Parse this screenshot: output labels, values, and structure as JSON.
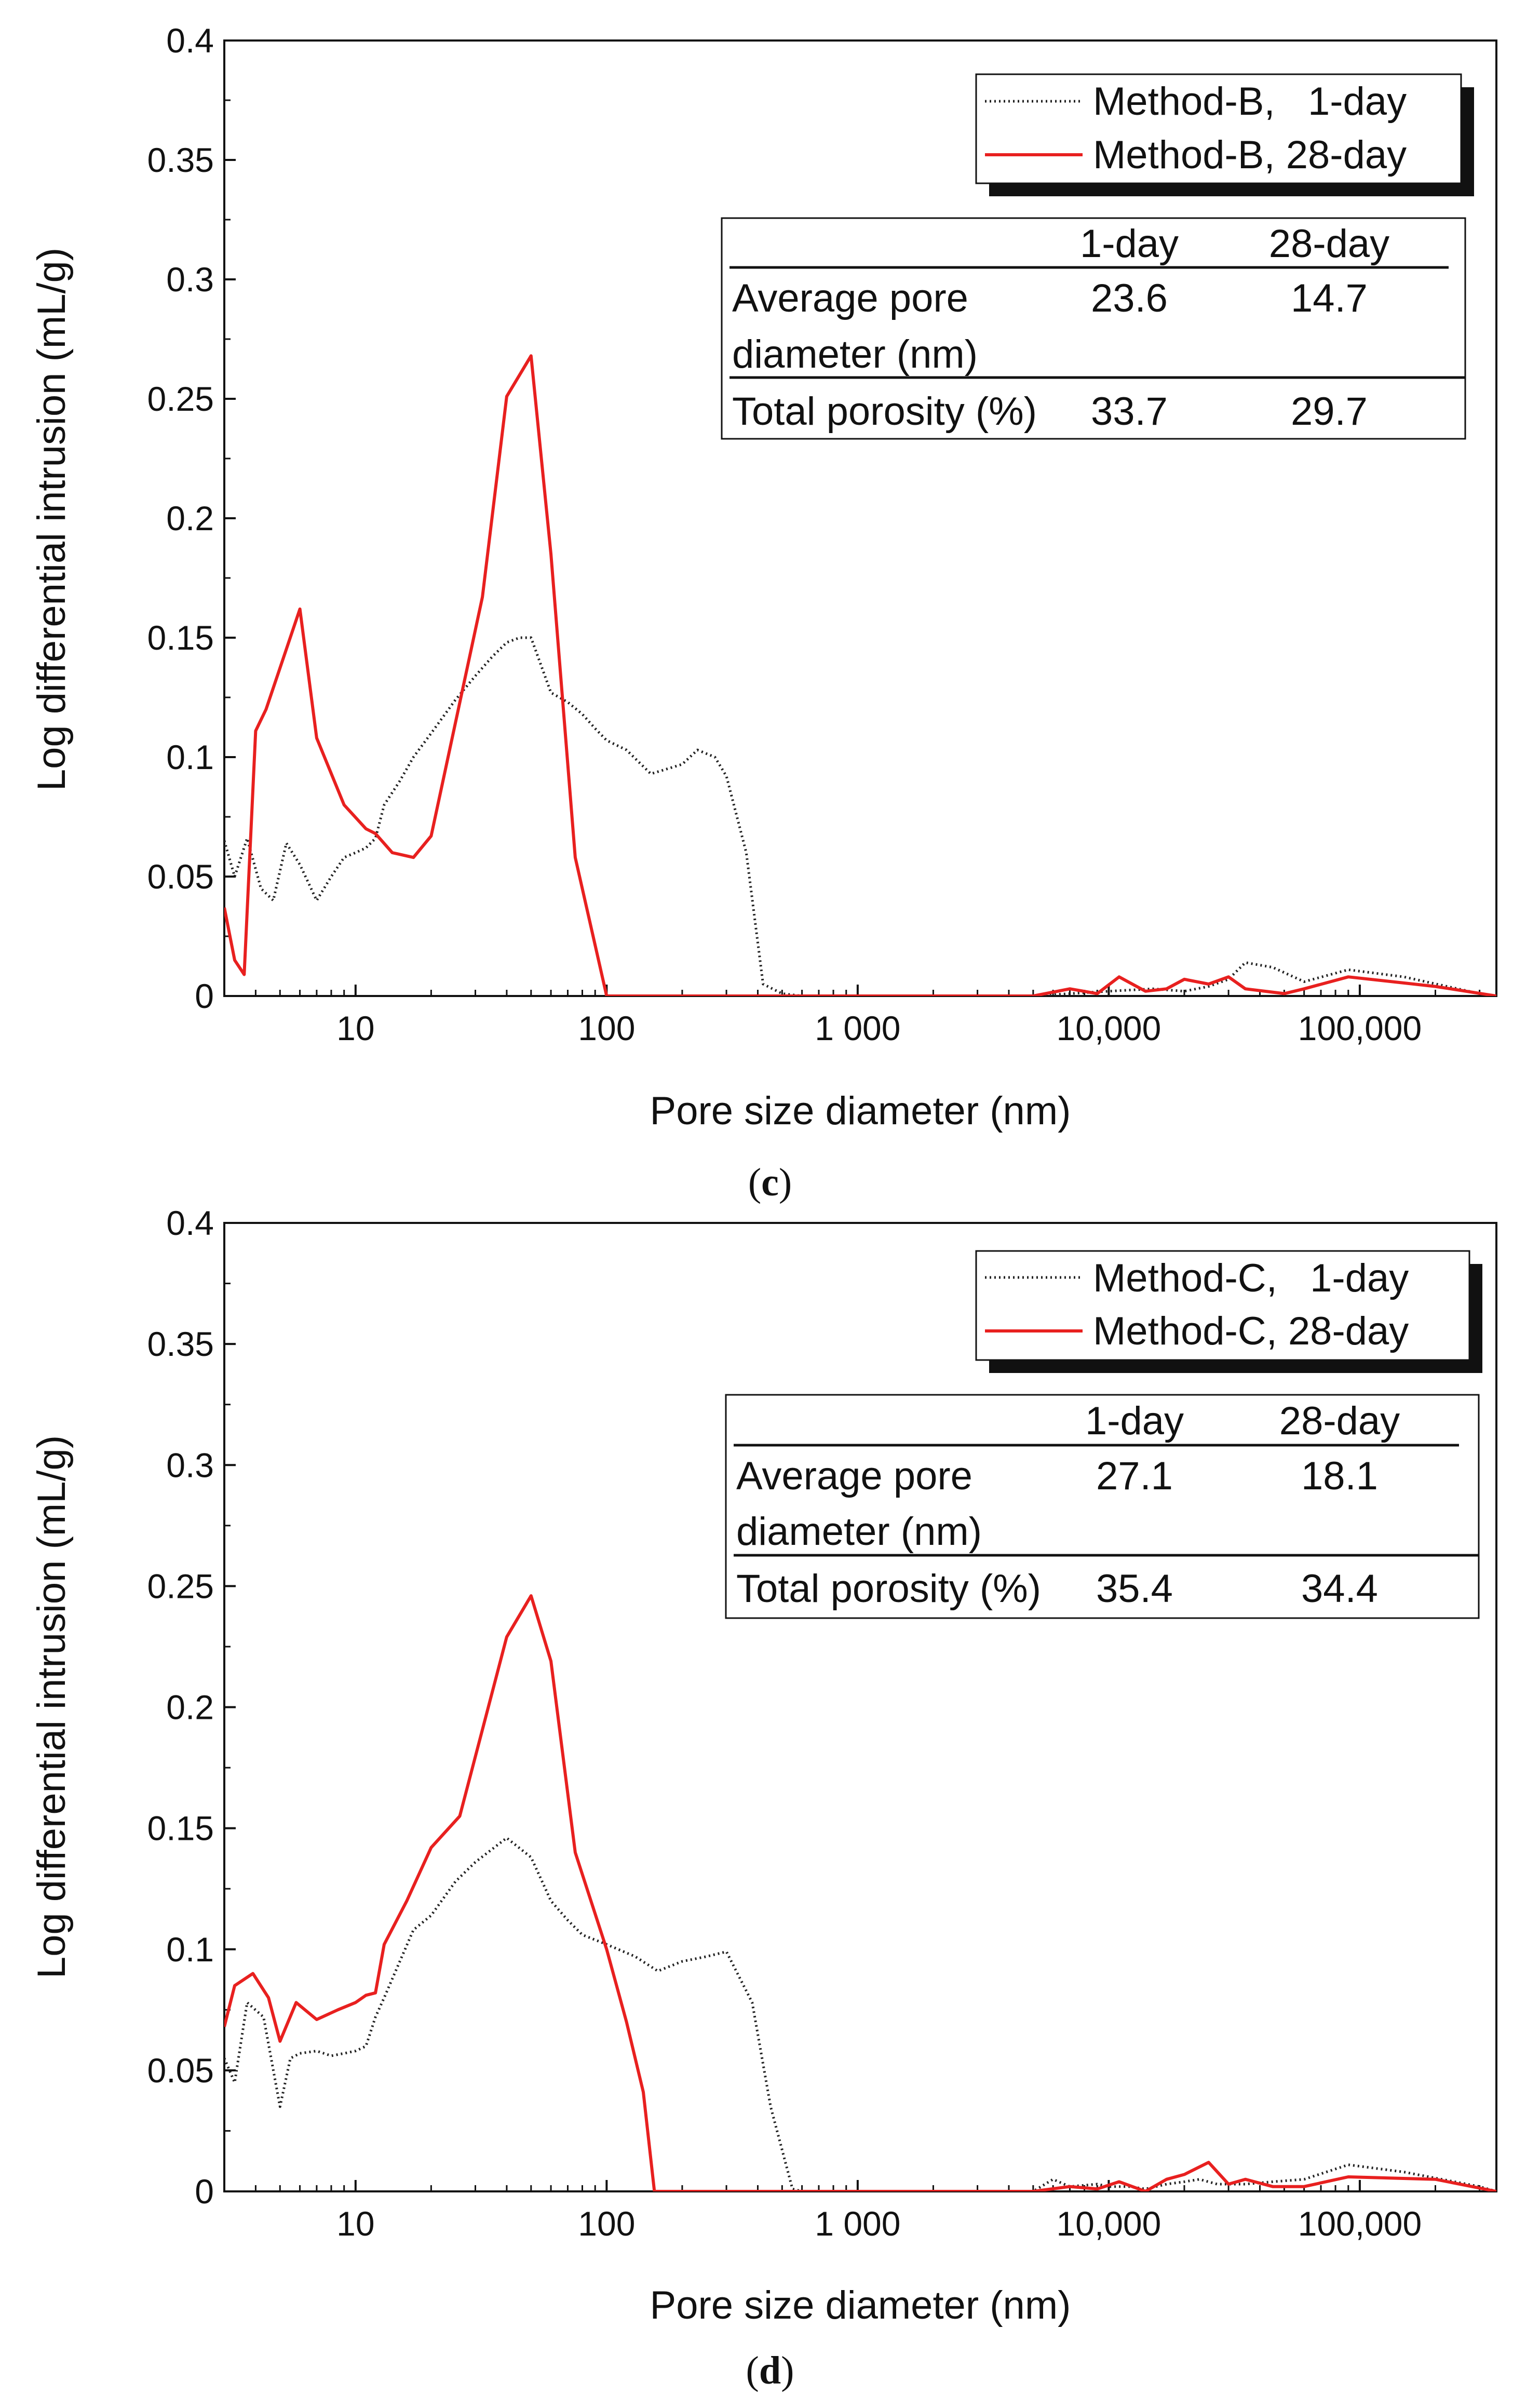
{
  "chart_data": [
    {
      "type": "line",
      "panel_label": "c",
      "xscale": "log",
      "xlim": [
        3,
        350000
      ],
      "ylim": [
        0,
        0.4
      ],
      "xlabel": "Pore size diameter (nm)",
      "ylabel": "Log differential intrusion (mL/g)",
      "yticks": [
        "0",
        "0.05",
        "0.1",
        "0.15",
        "0.2",
        "0.25",
        "0.3",
        "0.35",
        "0.4"
      ],
      "xticks": [
        "10",
        "100",
        "1 000",
        "10,000",
        "100,000"
      ],
      "legend": [
        "Method-B,   1-day",
        "Method-B, 28-day"
      ],
      "series": [
        {
          "name": "Method-B,   1-day",
          "color": "#222222",
          "style": "dotted",
          "x": [
            3,
            3.3,
            3.7,
            4.2,
            4.7,
            5.3,
            6,
            7,
            8,
            9,
            10,
            11,
            12,
            13,
            15,
            17,
            20,
            25,
            30,
            35,
            40,
            45,
            50,
            60,
            70,
            80,
            90,
            100,
            120,
            150,
            200,
            230,
            270,
            300,
            360,
            420,
            500,
            600,
            1000,
            5000,
            7000,
            10000,
            15000,
            20000,
            25000,
            30000,
            35000,
            45000,
            60000,
            90000,
            150000,
            300000,
            350000
          ],
          "y": [
            0.065,
            0.05,
            0.066,
            0.045,
            0.04,
            0.064,
            0.055,
            0.04,
            0.05,
            0.058,
            0.06,
            0.062,
            0.066,
            0.08,
            0.09,
            0.1,
            0.11,
            0.124,
            0.134,
            0.142,
            0.148,
            0.15,
            0.15,
            0.127,
            0.123,
            0.118,
            0.112,
            0.107,
            0.103,
            0.093,
            0.097,
            0.103,
            0.1,
            0.092,
            0.06,
            0.005,
            0.001,
            0,
            0,
            0,
            0.001,
            0.002,
            0.003,
            0.002,
            0.004,
            0.007,
            0.014,
            0.012,
            0.006,
            0.011,
            0.008,
            0.001,
            0
          ]
        },
        {
          "name": "Method-B, 28-day",
          "color": "#e8201f",
          "style": "solid",
          "x": [
            3,
            3.3,
            3.6,
            4,
            4.4,
            6,
            7,
            9,
            11,
            12,
            14,
            17,
            20,
            32,
            40,
            50,
            60,
            75,
            100,
            5000,
            7000,
            9000,
            11000,
            14000,
            17000,
            20000,
            25000,
            30000,
            35000,
            50000,
            60000,
            90000,
            200000,
            350000
          ],
          "y": [
            0.037,
            0.015,
            0.009,
            0.111,
            0.12,
            0.162,
            0.108,
            0.08,
            0.07,
            0.068,
            0.06,
            0.058,
            0.067,
            0.167,
            0.251,
            0.268,
            0.185,
            0.058,
            0,
            0,
            0.003,
            0.001,
            0.008,
            0.002,
            0.003,
            0.007,
            0.005,
            0.008,
            0.003,
            0.001,
            0.003,
            0.008,
            0.004,
            0
          ]
        }
      ],
      "table": {
        "headers": [
          "",
          "1-day",
          "28-day"
        ],
        "row1_label_line1": "Average pore",
        "row1_label_line2": "diameter (nm)",
        "row1_values": [
          "23.6",
          "14.7"
        ],
        "row2_label": "Total porosity (%)",
        "row2_values": [
          "33.7",
          "29.7"
        ]
      }
    },
    {
      "type": "line",
      "panel_label": "d",
      "xscale": "log",
      "xlim": [
        3,
        350000
      ],
      "ylim": [
        0,
        0.4
      ],
      "xlabel": "Pore size diameter (nm)",
      "ylabel": "Log differential intrusion (mL/g)",
      "yticks": [
        "0",
        "0.05",
        "0.1",
        "0.15",
        "0.2",
        "0.25",
        "0.3",
        "0.35",
        "0.4"
      ],
      "xticks": [
        "10",
        "100",
        "1 000",
        "10,000",
        "100,000"
      ],
      "legend": [
        "Method-C,   1-day",
        "Method-C, 28-day"
      ],
      "series": [
        {
          "name": "Method-C,   1-day",
          "color": "#222222",
          "style": "dotted",
          "x": [
            3,
            3.3,
            3.7,
            4.3,
            5,
            5.5,
            6,
            7,
            8,
            9,
            10,
            11,
            12,
            13,
            15,
            17,
            20,
            25,
            30,
            40,
            50,
            60,
            70,
            80,
            100,
            130,
            160,
            200,
            250,
            300,
            380,
            450,
            550,
            600,
            5000,
            6000,
            7000,
            9000,
            10000,
            12000,
            14000,
            17000,
            20000,
            23000,
            27000,
            35000,
            45000,
            60000,
            90000,
            150000,
            300000,
            350000
          ],
          "y": [
            0.055,
            0.045,
            0.078,
            0.072,
            0.035,
            0.055,
            0.057,
            0.058,
            0.056,
            0.057,
            0.058,
            0.06,
            0.072,
            0.08,
            0.095,
            0.108,
            0.114,
            0.128,
            0.136,
            0.146,
            0.138,
            0.12,
            0.112,
            0.106,
            0.102,
            0.097,
            0.091,
            0.095,
            0.097,
            0.099,
            0.078,
            0.035,
            0.001,
            0,
            0,
            0.005,
            0.002,
            0.003,
            0.002,
            0.002,
            0.001,
            0.003,
            0.004,
            0.005,
            0.003,
            0.003,
            0.004,
            0.005,
            0.011,
            0.008,
            0.002,
            0
          ]
        },
        {
          "name": "Method-C, 28-day",
          "color": "#e8201f",
          "style": "solid",
          "x": [
            3,
            3.3,
            3.9,
            4.5,
            5,
            5.8,
            7,
            8.5,
            10,
            11,
            12,
            13,
            16,
            20,
            26,
            40,
            50,
            60,
            75,
            100,
            120,
            140,
            155,
            5000,
            7000,
            9000,
            11000,
            14000,
            17000,
            20000,
            25000,
            30000,
            35000,
            45000,
            60000,
            90000,
            200000,
            350000
          ],
          "y": [
            0.068,
            0.085,
            0.09,
            0.08,
            0.062,
            0.078,
            0.071,
            0.075,
            0.078,
            0.081,
            0.082,
            0.102,
            0.12,
            0.142,
            0.155,
            0.229,
            0.246,
            0.219,
            0.14,
            0.1,
            0.07,
            0.041,
            0,
            0,
            0.002,
            0.001,
            0.004,
            0,
            0.005,
            0.007,
            0.012,
            0.003,
            0.005,
            0.002,
            0.002,
            0.006,
            0.005,
            0
          ]
        }
      ],
      "table": {
        "headers": [
          "",
          "1-day",
          "28-day"
        ],
        "row1_label_line1": "Average pore",
        "row1_label_line2": "diameter (nm)",
        "row1_values": [
          "27.1",
          "18.1"
        ],
        "row2_label": "Total porosity (%)",
        "row2_values": [
          "35.4",
          "34.4"
        ]
      }
    }
  ]
}
